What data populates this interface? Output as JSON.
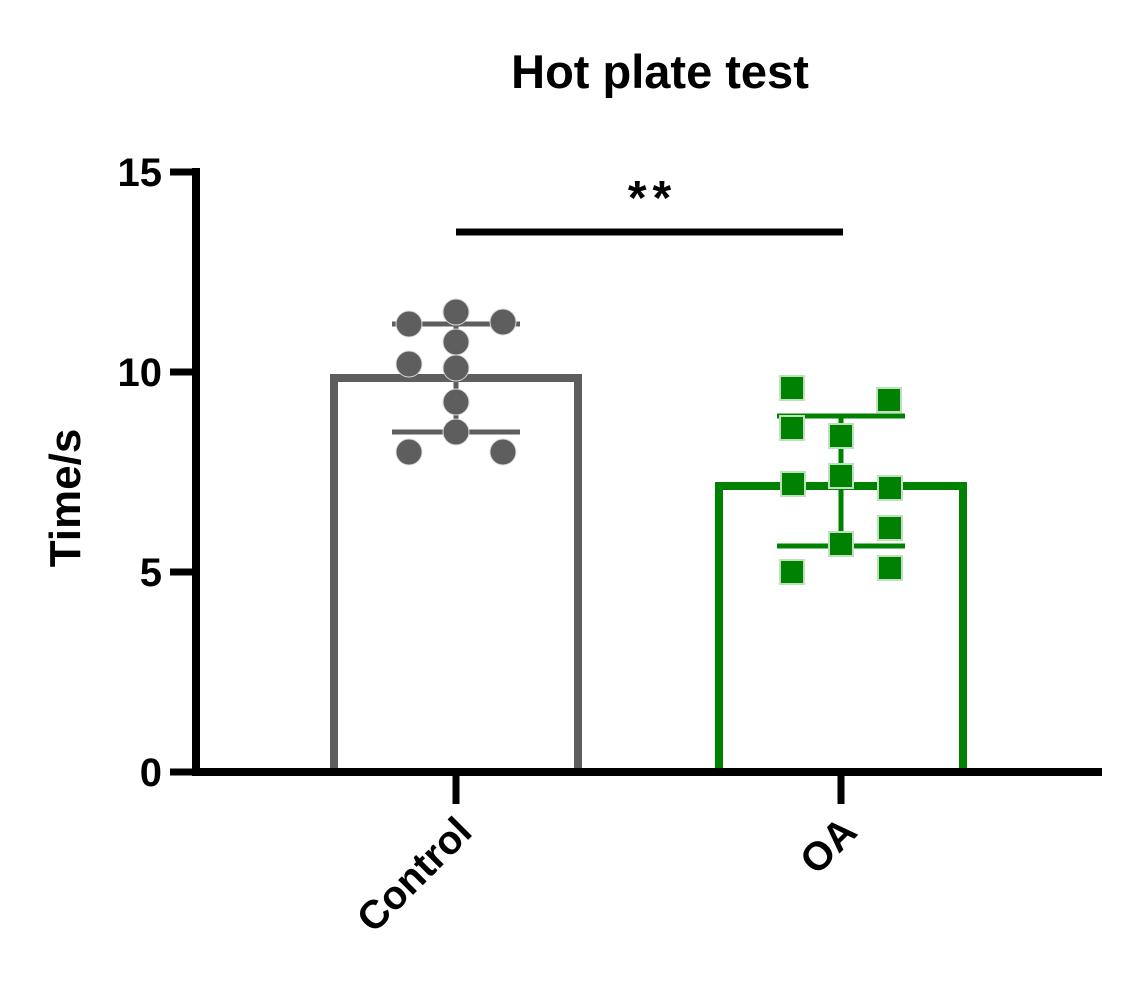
{
  "colors": {
    "background": "#ffffff",
    "axis": "#000000",
    "control": "#5e5e5e",
    "oa": "#018101",
    "bar_fill": "#ffffff",
    "circle_outline": "#d9d9d9",
    "square_outline": "#bfe0bf"
  },
  "chart_data": {
    "type": "bar",
    "title": "Hot plate test",
    "ylabel": "Time/s",
    "xlabel": "",
    "ylim": [
      0,
      15
    ],
    "yticks": [
      0,
      5,
      10,
      15
    ],
    "grid": false,
    "legend": "none",
    "categories": [
      "Control",
      "OA"
    ],
    "significance": {
      "label": "**",
      "between": [
        "Control",
        "OA"
      ],
      "line_y": 13.5
    },
    "series": [
      {
        "name": "Control",
        "marker": "circle",
        "color": "#5e5e5e",
        "mean": 9.85,
        "error_high": 11.2,
        "error_low": 8.5,
        "points": [
          {
            "value": 11.5,
            "dx": 0
          },
          {
            "value": 11.25,
            "dx": 47
          },
          {
            "value": 11.2,
            "dx": -47
          },
          {
            "value": 10.75,
            "dx": 0
          },
          {
            "value": 10.2,
            "dx": -47
          },
          {
            "value": 10.1,
            "dx": 0
          },
          {
            "value": 9.25,
            "dx": 0
          },
          {
            "value": 8.5,
            "dx": 0
          },
          {
            "value": 8.0,
            "dx": -47
          },
          {
            "value": 8.0,
            "dx": 47
          }
        ]
      },
      {
        "name": "OA",
        "marker": "square",
        "color": "#018101",
        "mean": 7.15,
        "error_high": 8.9,
        "error_low": 5.65,
        "points": [
          {
            "value": 9.6,
            "dx": -49
          },
          {
            "value": 9.3,
            "dx": 48
          },
          {
            "value": 8.6,
            "dx": -49
          },
          {
            "value": 8.4,
            "dx": 0
          },
          {
            "value": 7.4,
            "dx": 0
          },
          {
            "value": 7.2,
            "dx": -48
          },
          {
            "value": 7.1,
            "dx": 49
          },
          {
            "value": 6.1,
            "dx": 49
          },
          {
            "value": 5.7,
            "dx": 0
          },
          {
            "value": 5.1,
            "dx": 49
          },
          {
            "value": 5.0,
            "dx": -49
          }
        ]
      }
    ]
  }
}
